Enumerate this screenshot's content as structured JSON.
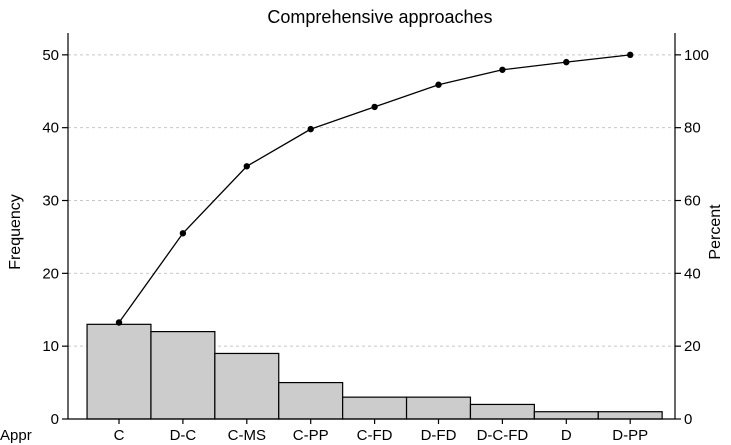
{
  "chart_data": {
    "type": "bar",
    "title": "Comprehensive approaches",
    "xlabel": "Appr",
    "ylabel": "Frequency",
    "y2label": "Percent",
    "categories": [
      "C",
      "D-C",
      "C-MS",
      "C-PP",
      "C-FD",
      "D-FD",
      "D-C-FD",
      "D",
      "D-PP"
    ],
    "series": [
      {
        "type": "bar",
        "values": [
          13,
          12,
          9,
          5,
          3,
          3,
          2,
          1,
          1
        ]
      },
      {
        "type": "line",
        "axis": "right",
        "values": [
          26.5,
          51.0,
          69.4,
          79.6,
          85.7,
          91.8,
          95.9,
          98.0,
          100.0
        ]
      }
    ],
    "ylim": [
      0,
      53
    ],
    "y2lim": [
      0,
      106
    ],
    "yticks": [
      0,
      10,
      20,
      30,
      40,
      50
    ],
    "y2ticks": [
      0,
      20,
      40,
      60,
      80,
      100
    ],
    "grid": "horizontal dashed",
    "legend": "none",
    "colors": {
      "bar_fill": "#cccccc",
      "bar_stroke": "#000000",
      "line": "#000000",
      "gridline": "#c8c8c8"
    }
  }
}
